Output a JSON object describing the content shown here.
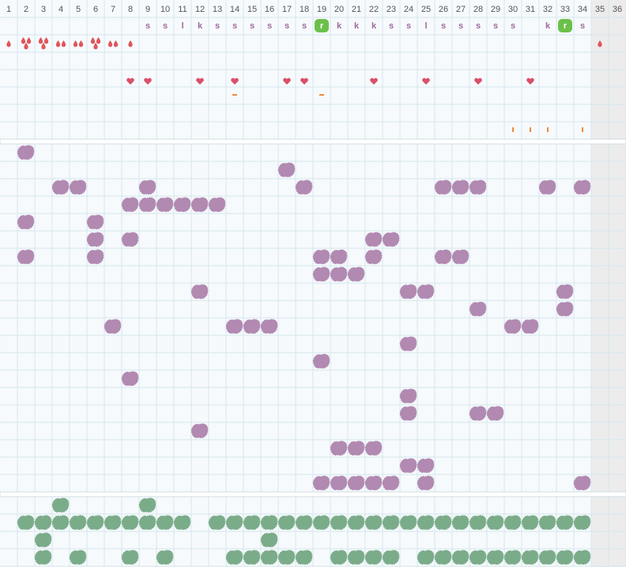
{
  "header": {
    "columns": [
      "1",
      "2",
      "3",
      "4",
      "5",
      "6",
      "7",
      "8",
      "9",
      "10",
      "11",
      "12",
      "13",
      "14",
      "15",
      "16",
      "17",
      "18",
      "19",
      "20",
      "21",
      "22",
      "23",
      "24",
      "25",
      "26",
      "27",
      "28",
      "29",
      "30",
      "31",
      "32",
      "33",
      "34",
      "35",
      "36"
    ]
  },
  "top_rows": {
    "letters": [
      {
        "col": 9,
        "text": "s"
      },
      {
        "col": 10,
        "text": "s"
      },
      {
        "col": 11,
        "text": "l"
      },
      {
        "col": 12,
        "text": "k"
      },
      {
        "col": 13,
        "text": "s"
      },
      {
        "col": 14,
        "text": "s"
      },
      {
        "col": 15,
        "text": "s"
      },
      {
        "col": 16,
        "text": "s"
      },
      {
        "col": 17,
        "text": "s"
      },
      {
        "col": 18,
        "text": "s"
      },
      {
        "col": 19,
        "text": "r",
        "badge": true
      },
      {
        "col": 20,
        "text": "k"
      },
      {
        "col": 21,
        "text": "k"
      },
      {
        "col": 22,
        "text": "k"
      },
      {
        "col": 23,
        "text": "s"
      },
      {
        "col": 24,
        "text": "s"
      },
      {
        "col": 25,
        "text": "l"
      },
      {
        "col": 26,
        "text": "s"
      },
      {
        "col": 27,
        "text": "s"
      },
      {
        "col": 28,
        "text": "s"
      },
      {
        "col": 29,
        "text": "s"
      },
      {
        "col": 30,
        "text": "s"
      },
      {
        "col": 32,
        "text": "k"
      },
      {
        "col": 33,
        "text": "r",
        "badge": true
      },
      {
        "col": 34,
        "text": "s"
      }
    ],
    "drops": [
      {
        "col": 1,
        "count": 1
      },
      {
        "col": 2,
        "count": 3
      },
      {
        "col": 3,
        "count": 3
      },
      {
        "col": 4,
        "count": 2
      },
      {
        "col": 5,
        "count": 2
      },
      {
        "col": 6,
        "count": 3
      },
      {
        "col": 7,
        "count": 2
      },
      {
        "col": 8,
        "count": 1
      },
      {
        "col": 35,
        "count": 1
      }
    ],
    "hearts": [
      8,
      9,
      12,
      14,
      17,
      18,
      22,
      25,
      28,
      31
    ],
    "dashes": [
      14,
      19
    ],
    "ticks": [
      30,
      31,
      32,
      34
    ]
  },
  "purple_rows": [
    [
      2
    ],
    [
      17
    ],
    [
      4,
      5,
      9,
      18,
      26,
      27,
      28,
      32,
      34
    ],
    [
      8,
      9,
      10,
      11,
      12,
      13
    ],
    [
      2,
      6
    ],
    [
      6,
      8,
      22,
      23
    ],
    [
      2,
      6,
      19,
      20,
      22,
      26,
      27
    ],
    [
      19,
      20,
      21
    ],
    [
      12,
      24,
      25,
      33
    ],
    [
      28,
      33
    ],
    [
      7,
      14,
      15,
      16,
      30,
      31
    ],
    [
      24
    ],
    [
      19
    ],
    [
      8
    ],
    [
      24
    ],
    [
      24,
      28,
      29
    ],
    [
      12
    ],
    [
      20,
      21,
      22
    ],
    [
      24,
      25
    ],
    [
      19,
      20,
      21,
      22,
      23,
      25,
      34
    ]
  ],
  "green_rows": [
    [
      4,
      9
    ],
    [
      2,
      3,
      4,
      5,
      6,
      7,
      8,
      9,
      10,
      11,
      13,
      14,
      15,
      16,
      17,
      18,
      19,
      20,
      21,
      22,
      23,
      24,
      25,
      26,
      27,
      28,
      29,
      30,
      31,
      32,
      33,
      34
    ],
    [
      3,
      16
    ],
    [
      3,
      5,
      8,
      10,
      14,
      15,
      16,
      17,
      18,
      20,
      21,
      22,
      23,
      25,
      26,
      27,
      28,
      29,
      30,
      31,
      32,
      33,
      34
    ]
  ]
}
